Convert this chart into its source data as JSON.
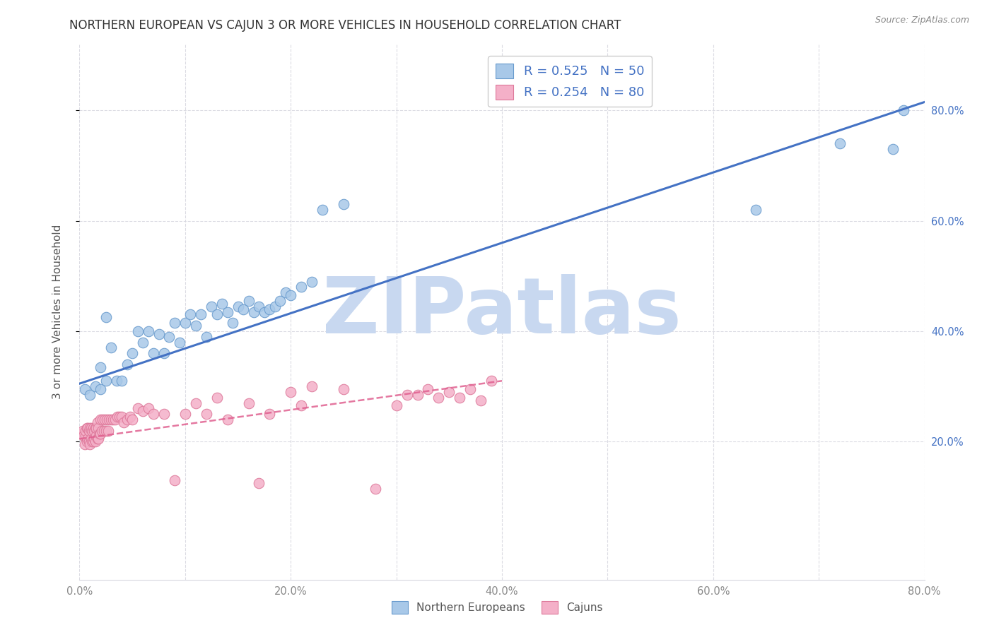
{
  "title": "NORTHERN EUROPEAN VS CAJUN 3 OR MORE VEHICLES IN HOUSEHOLD CORRELATION CHART",
  "source": "Source: ZipAtlas.com",
  "ylabel": "3 or more Vehicles in Household",
  "xlim": [
    0.0,
    0.8
  ],
  "ylim": [
    -0.05,
    0.92
  ],
  "xtick_labels": [
    "0.0%",
    "",
    "20.0%",
    "",
    "40.0%",
    "",
    "60.0%",
    "",
    "80.0%"
  ],
  "xtick_vals": [
    0.0,
    0.1,
    0.2,
    0.3,
    0.4,
    0.5,
    0.6,
    0.7,
    0.8
  ],
  "ytick_vals": [
    0.2,
    0.4,
    0.6,
    0.8
  ],
  "ytick_labels": [
    "20.0%",
    "40.0%",
    "60.0%",
    "80.0%"
  ],
  "blue_color": "#a8c8e8",
  "blue_edge": "#6699cc",
  "pink_color": "#f4b0c8",
  "pink_edge": "#dd7799",
  "blue_line_color": "#4472c4",
  "pink_line_color": "#e06090",
  "legend_blue_label": "R = 0.525   N = 50",
  "legend_pink_label": "R = 0.254   N = 80",
  "watermark": "ZIPatlas",
  "watermark_color": "#c8d8f0",
  "blue_scatter_x": [
    0.005,
    0.01,
    0.015,
    0.02,
    0.02,
    0.025,
    0.025,
    0.03,
    0.035,
    0.04,
    0.045,
    0.05,
    0.055,
    0.06,
    0.065,
    0.07,
    0.075,
    0.08,
    0.085,
    0.09,
    0.095,
    0.1,
    0.105,
    0.11,
    0.115,
    0.12,
    0.125,
    0.13,
    0.135,
    0.14,
    0.145,
    0.15,
    0.155,
    0.16,
    0.165,
    0.17,
    0.175,
    0.18,
    0.185,
    0.19,
    0.195,
    0.2,
    0.21,
    0.22,
    0.23,
    0.25,
    0.64,
    0.72,
    0.77,
    0.78
  ],
  "blue_scatter_y": [
    0.295,
    0.285,
    0.3,
    0.295,
    0.335,
    0.31,
    0.425,
    0.37,
    0.31,
    0.31,
    0.34,
    0.36,
    0.4,
    0.38,
    0.4,
    0.36,
    0.395,
    0.36,
    0.39,
    0.415,
    0.38,
    0.415,
    0.43,
    0.41,
    0.43,
    0.39,
    0.445,
    0.43,
    0.45,
    0.435,
    0.415,
    0.445,
    0.44,
    0.455,
    0.435,
    0.445,
    0.435,
    0.44,
    0.445,
    0.455,
    0.47,
    0.465,
    0.48,
    0.49,
    0.62,
    0.63,
    0.62,
    0.74,
    0.73,
    0.8
  ],
  "pink_scatter_x": [
    0.002,
    0.003,
    0.004,
    0.005,
    0.006,
    0.006,
    0.007,
    0.007,
    0.008,
    0.008,
    0.009,
    0.009,
    0.01,
    0.01,
    0.011,
    0.011,
    0.012,
    0.012,
    0.013,
    0.013,
    0.014,
    0.014,
    0.015,
    0.015,
    0.016,
    0.016,
    0.017,
    0.017,
    0.018,
    0.018,
    0.019,
    0.02,
    0.02,
    0.021,
    0.022,
    0.023,
    0.024,
    0.025,
    0.026,
    0.027,
    0.028,
    0.03,
    0.032,
    0.034,
    0.036,
    0.038,
    0.04,
    0.042,
    0.045,
    0.048,
    0.05,
    0.055,
    0.06,
    0.065,
    0.07,
    0.08,
    0.09,
    0.1,
    0.11,
    0.12,
    0.13,
    0.14,
    0.16,
    0.17,
    0.18,
    0.2,
    0.21,
    0.22,
    0.25,
    0.28,
    0.3,
    0.31,
    0.32,
    0.33,
    0.34,
    0.35,
    0.36,
    0.37,
    0.38,
    0.39
  ],
  "pink_scatter_y": [
    0.215,
    0.22,
    0.21,
    0.195,
    0.21,
    0.22,
    0.2,
    0.225,
    0.205,
    0.225,
    0.2,
    0.22,
    0.195,
    0.225,
    0.205,
    0.225,
    0.2,
    0.22,
    0.2,
    0.225,
    0.205,
    0.22,
    0.2,
    0.225,
    0.21,
    0.225,
    0.205,
    0.235,
    0.205,
    0.225,
    0.215,
    0.215,
    0.24,
    0.22,
    0.24,
    0.22,
    0.24,
    0.22,
    0.24,
    0.22,
    0.24,
    0.24,
    0.24,
    0.24,
    0.245,
    0.245,
    0.245,
    0.235,
    0.24,
    0.245,
    0.24,
    0.26,
    0.255,
    0.26,
    0.25,
    0.25,
    0.13,
    0.25,
    0.27,
    0.25,
    0.28,
    0.24,
    0.27,
    0.125,
    0.25,
    0.29,
    0.265,
    0.3,
    0.295,
    0.115,
    0.265,
    0.285,
    0.285,
    0.295,
    0.28,
    0.29,
    0.28,
    0.295,
    0.275,
    0.31
  ],
  "blue_line_x": [
    0.0,
    0.8
  ],
  "blue_line_y": [
    0.305,
    0.815
  ],
  "pink_line_x": [
    0.0,
    0.4
  ],
  "pink_line_y": [
    0.205,
    0.31
  ],
  "grid_color": "#d8d8e0",
  "background_color": "#ffffff",
  "title_fontsize": 12,
  "axis_label_fontsize": 11,
  "tick_fontsize": 10.5,
  "legend_fontsize": 13
}
